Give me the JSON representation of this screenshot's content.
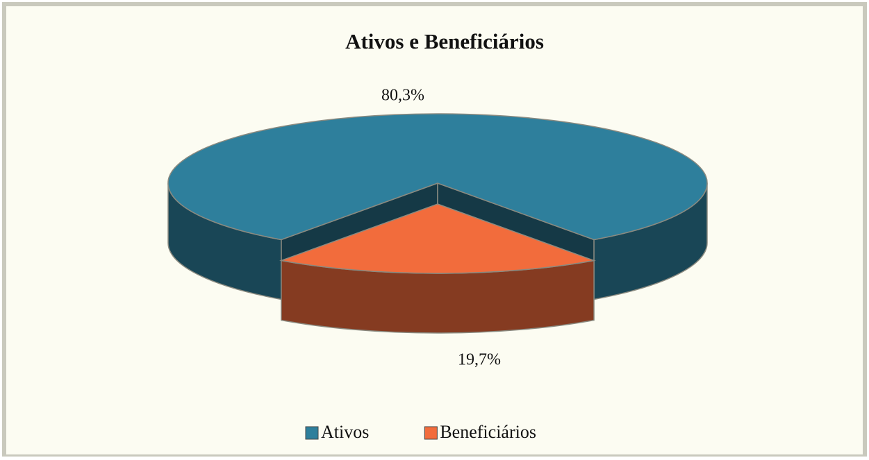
{
  "chart_data": {
    "type": "pie",
    "title": "Ativos e Beneficiários",
    "categories": [
      "Ativos",
      "Beneficiários"
    ],
    "values": [
      80.3,
      19.7
    ],
    "value_labels": [
      "80,3%",
      "19,7%"
    ],
    "colors": [
      "#2e7f9c",
      "#f26c3c"
    ],
    "exploded": [
      false,
      true
    ],
    "legend": "bottom"
  }
}
